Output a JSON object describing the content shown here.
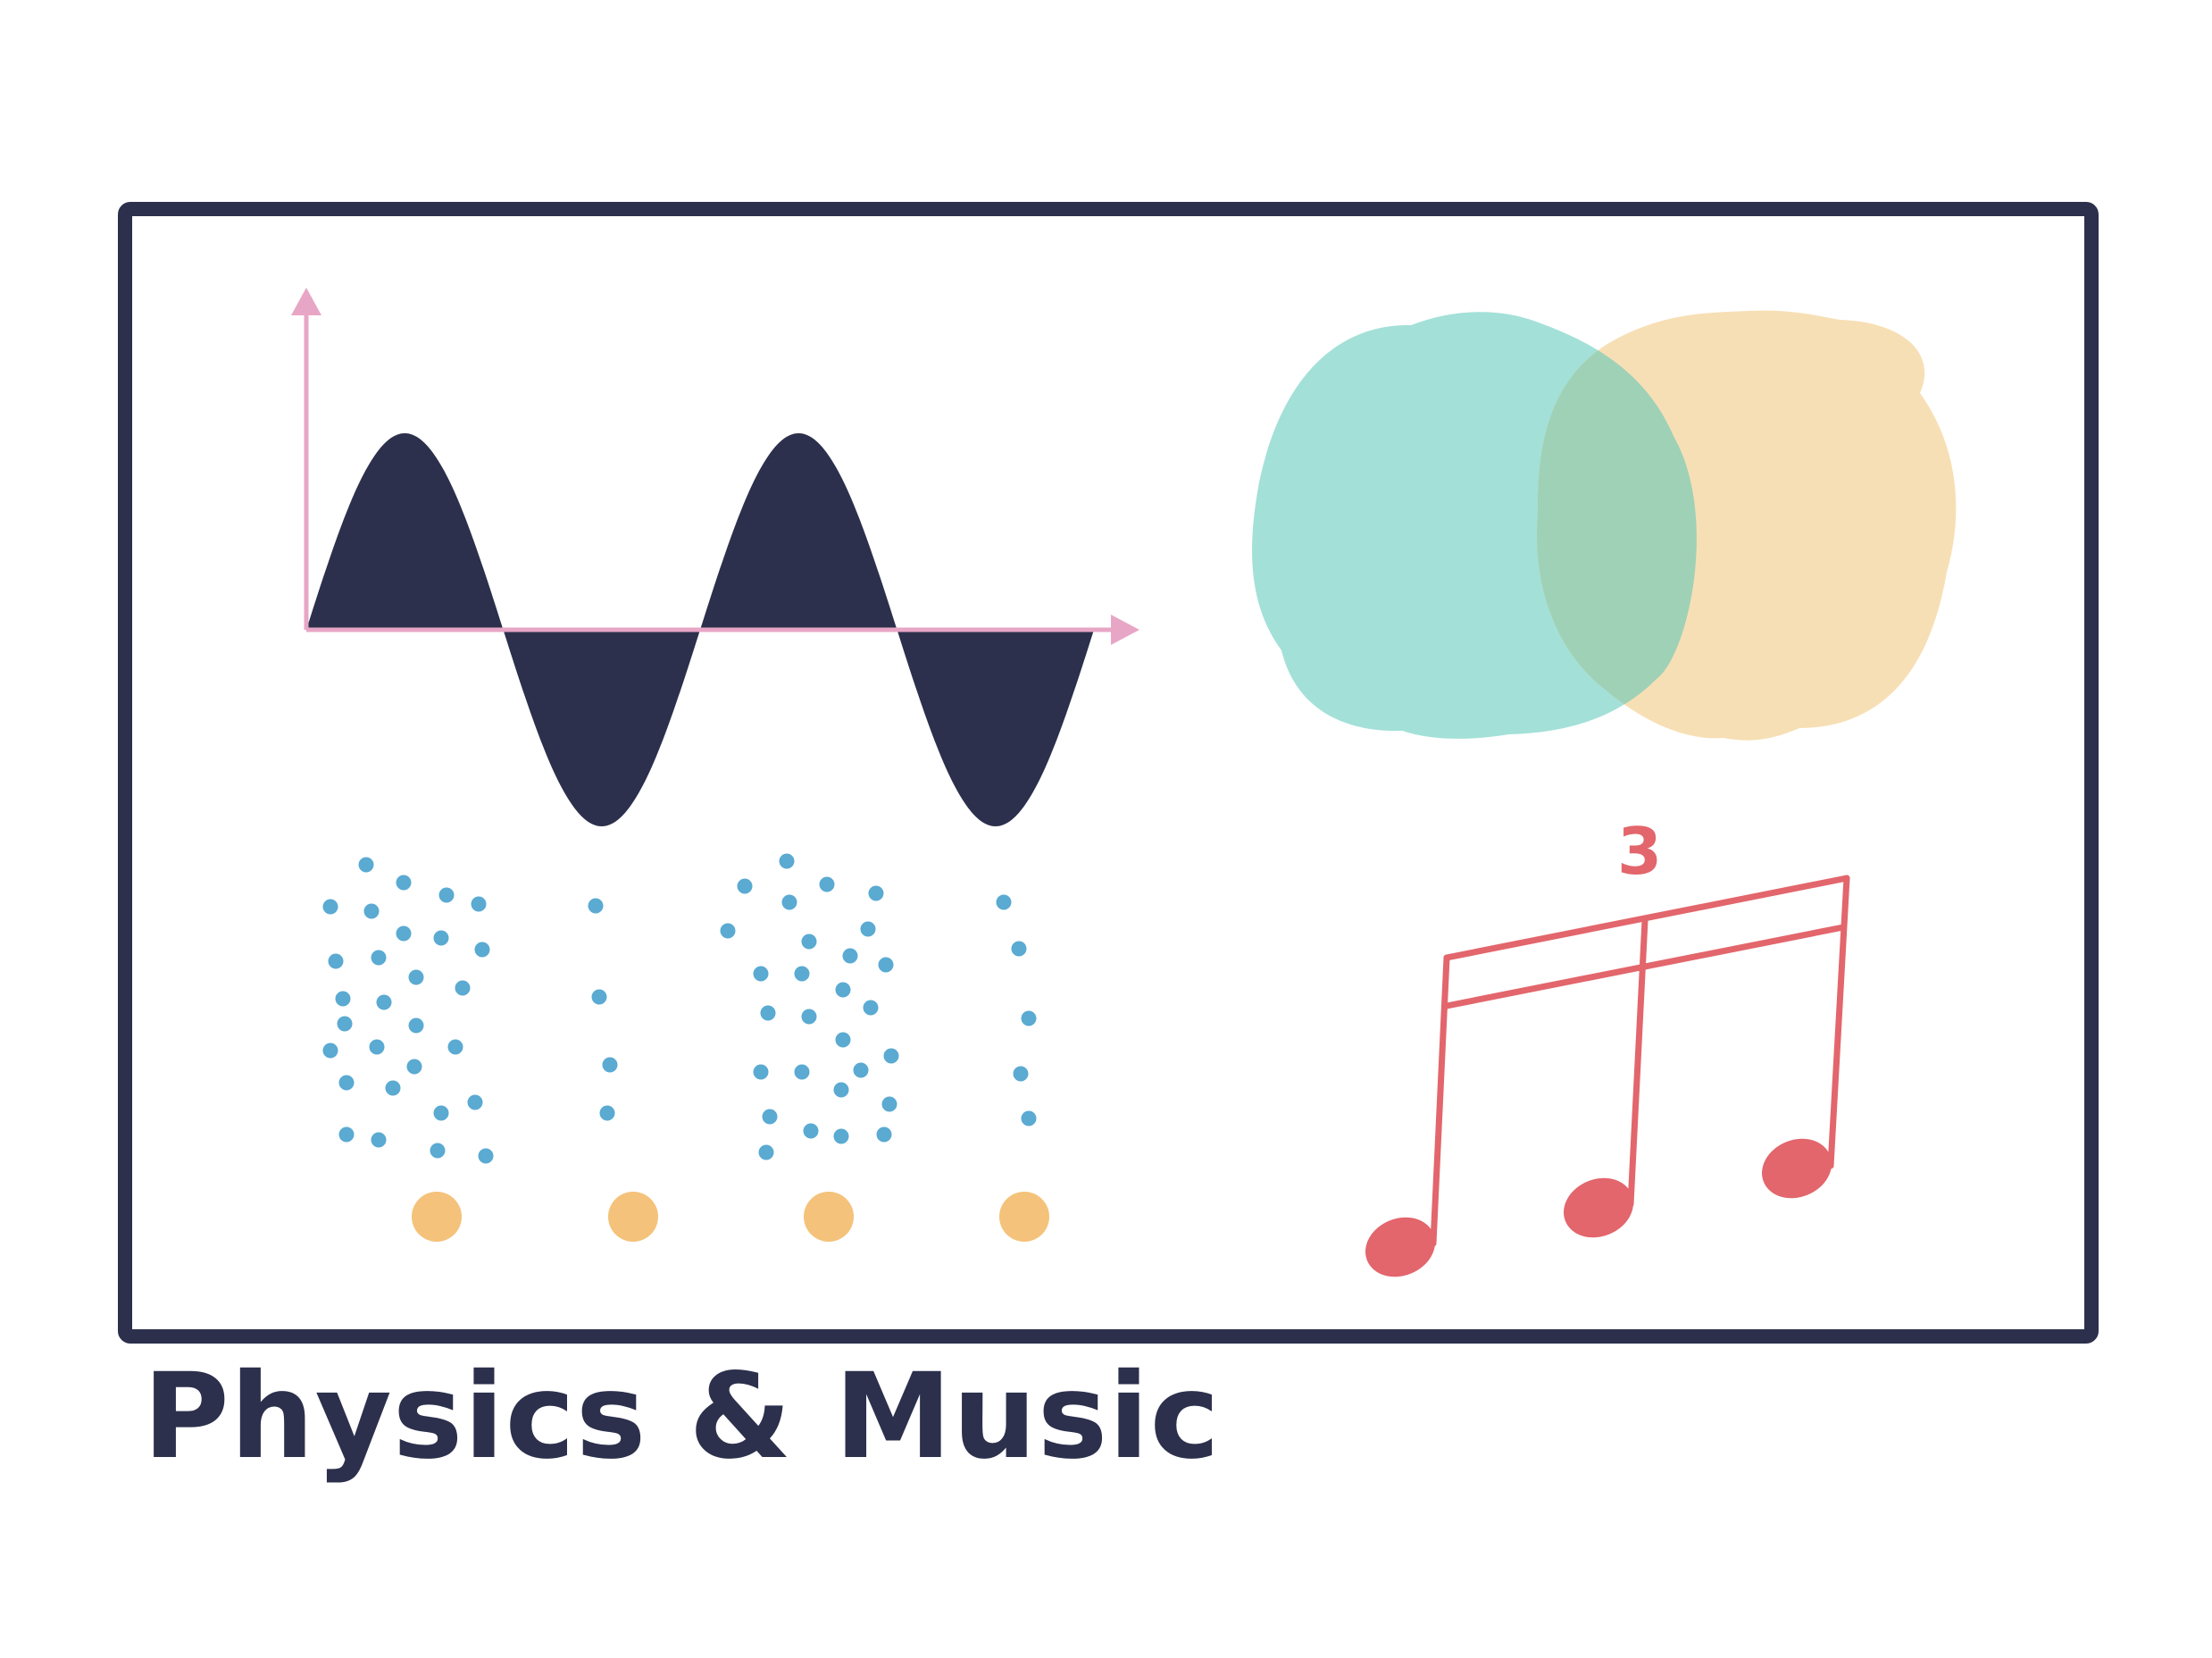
{
  "caption": "Physics & Music",
  "triplet_number": "3",
  "colors": {
    "frame": "#2c304c",
    "wave": "#2c304c",
    "axis": "#e8a6c6",
    "particles": "#5aaad2",
    "sources": "#f4c27a",
    "blob_left": "#a3e0d8",
    "blob_right": "#f7dfb5",
    "blob_overlap": "#9fd1b7",
    "notes": "#e2666c",
    "caption": "#2c304c"
  },
  "icons": {
    "sine_wave": "sine-wave-icon",
    "particle_columns": "sound-particles-icon",
    "venn": "venn-blobs-icon",
    "triplet": "eighth-note-triplet-icon"
  }
}
